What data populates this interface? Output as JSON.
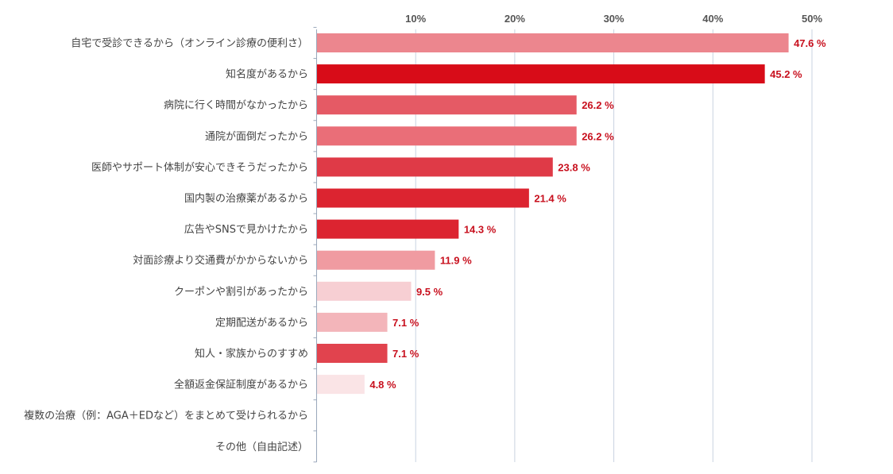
{
  "chart_data": {
    "type": "bar",
    "orientation": "horizontal",
    "title": "",
    "xlabel": "",
    "ylabel": "",
    "xlim": [
      0,
      50
    ],
    "ticks": [
      {
        "value": 10,
        "label": "10%"
      },
      {
        "value": 20,
        "label": "20%"
      },
      {
        "value": 30,
        "label": "30%"
      },
      {
        "value": 40,
        "label": "40%"
      },
      {
        "value": 50,
        "label": "50%"
      }
    ],
    "grid": true,
    "legend": "none",
    "value_suffix": " %",
    "categories": [
      "自宅で受診できるから（オンライン診療の便利さ）",
      "知名度があるから",
      "病院に行く時間がなかったから",
      "通院が面倒だったから",
      "医師やサポート体制が安心できそうだったから",
      "国内製の治療薬があるから",
      "広告やSNSで見かけたから",
      "対面診療より交通費がかからないから",
      "クーポンや割引があったから",
      "定期配送があるから",
      "知人・家族からのすすめ",
      "全額返金保証制度があるから",
      "複数の治療（例：AGA＋EDなど）をまとめて受けられるから",
      "その他（自由記述）"
    ],
    "values": [
      47.6,
      45.2,
      26.2,
      26.2,
      23.8,
      21.4,
      14.3,
      11.9,
      9.5,
      7.1,
      7.1,
      4.8,
      null,
      null
    ],
    "value_labels": [
      "47.6 %",
      "45.2 %",
      "26.2 %",
      "26.2 %",
      "23.8 %",
      "21.4 %",
      "14.3 %",
      "11.9 %",
      "9.5 %",
      "7.1 %",
      "7.1 %",
      "4.8 %",
      "",
      ""
    ],
    "colors": [
      "#ec868e",
      "#d80c18",
      "#e55a65",
      "#ea6e78",
      "#df3a47",
      "#dc2430",
      "#dc2430",
      "#f09ba1",
      "#f7cfd3",
      "#f3b5ba",
      "#e1434e",
      "#fae4e6",
      "",
      ""
    ]
  }
}
